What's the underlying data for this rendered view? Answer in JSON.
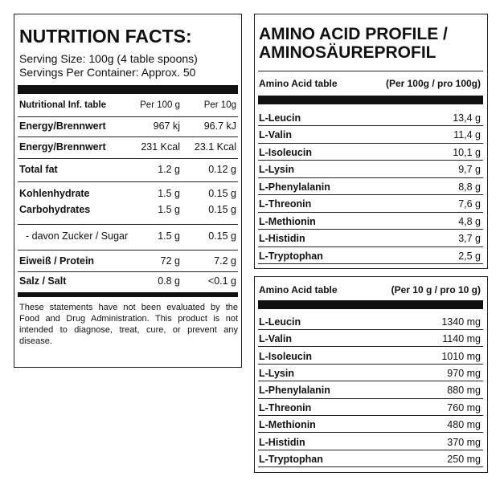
{
  "nutrition": {
    "title": "NUTRITION FACTS:",
    "serving_size": "Serving Size: 100g (4 table spoons)",
    "servings": "Servings Per Container: Approx. 50",
    "header": [
      "Nutritional Inf. table",
      "Per 100 g",
      "Per 10g"
    ],
    "rows": [
      [
        "Energy/Brennwert",
        "967 kj",
        "96.7 kJ"
      ],
      [
        "Energy/Brennwert",
        "231 Kcal",
        "23.1 Kcal"
      ],
      [
        "Total fat",
        "1.2 g",
        "0.12 g"
      ],
      [
        "Kohlenhydrate",
        "1.5 g",
        "0.15 g"
      ],
      [
        "Carbohydrates",
        "1.5 g",
        "0.15 g"
      ],
      [
        "- davon Zucker / Sugar",
        "1.5 g",
        "0.15 g"
      ],
      [
        "Eiweiß / Protein",
        "72 g",
        "7.2 g"
      ],
      [
        "Salz / Salt",
        "0.8 g",
        "<0.1 g"
      ]
    ],
    "disclaimer": "These statements have not been evaluated by the Food and Drug Administration. This product is not intended to diagnose, treat, cure, or prevent any disease."
  },
  "amino": {
    "title": [
      "AMINO ACID PROFILE /",
      "AMINOSÄUREPROFIL"
    ],
    "table1": {
      "header": [
        "Amino Acid table",
        "(Per 100g / pro 100g)"
      ],
      "rows": [
        [
          "L-Leucin",
          "13,4 g"
        ],
        [
          "L-Valin",
          "11,4 g"
        ],
        [
          "L-Isoleucin",
          "10,1 g"
        ],
        [
          "L-Lysin",
          "9,7 g"
        ],
        [
          "L-Phenylalanin",
          "8,8 g"
        ],
        [
          "L-Threonin",
          "7,6 g"
        ],
        [
          "L-Methionin",
          "4,8 g"
        ],
        [
          "L-Histidin",
          "3,7 g"
        ],
        [
          "L-Tryptophan",
          "2,5 g"
        ]
      ]
    },
    "table2": {
      "header": [
        "Amino Acid table",
        "(Per 10 g / pro 10 g)"
      ],
      "rows": [
        [
          "L-Leucin",
          "1340 mg"
        ],
        [
          "L-Valin",
          "1140 mg"
        ],
        [
          "L-Isoleucin",
          "1010 mg"
        ],
        [
          "L-Lysin",
          "970 mg"
        ],
        [
          "L-Phenylalanin",
          "880 mg"
        ],
        [
          "L-Threonin",
          "760 mg"
        ],
        [
          "L-Methionin",
          "480 mg"
        ],
        [
          "L-Histidin",
          "370 mg"
        ],
        [
          "L-Tryptophan",
          "250 mg"
        ]
      ]
    }
  }
}
